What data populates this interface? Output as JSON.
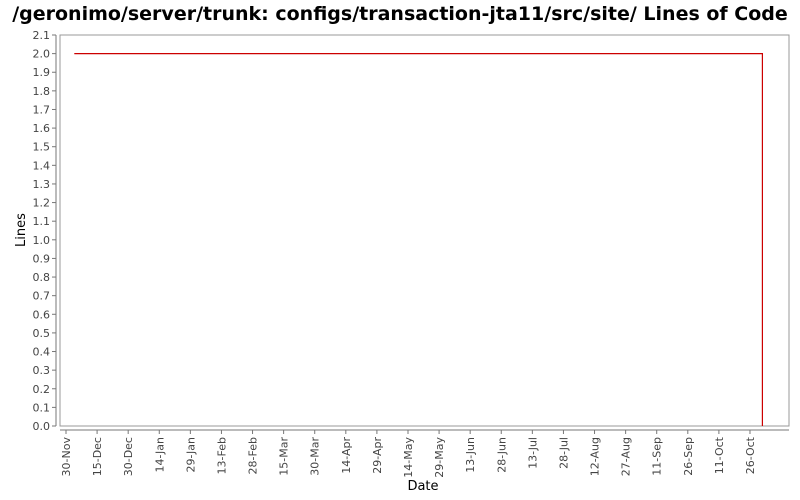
{
  "chart_data": {
    "type": "line",
    "title": "/geronimo/server/trunk: configs/transaction-jta11/src/site/ Lines of Code",
    "xlabel": "Date",
    "ylabel": "Lines",
    "ylim": [
      0.0,
      2.1
    ],
    "y_ticks": [
      "0.0",
      "0.1",
      "0.2",
      "0.3",
      "0.4",
      "0.5",
      "0.6",
      "0.7",
      "0.8",
      "0.9",
      "1.0",
      "1.1",
      "1.2",
      "1.3",
      "1.4",
      "1.5",
      "1.6",
      "1.7",
      "1.8",
      "1.9",
      "2.0",
      "2.1"
    ],
    "x_ticks": [
      "30-Nov",
      "15-Dec",
      "30-Dec",
      "14-Jan",
      "29-Jan",
      "13-Feb",
      "28-Feb",
      "15-Mar",
      "30-Mar",
      "14-Apr",
      "29-Apr",
      "14-May",
      "29-May",
      "13-Jun",
      "28-Jun",
      "13-Jul",
      "28-Jul",
      "12-Aug",
      "27-Aug",
      "11-Sep",
      "26-Sep",
      "11-Oct",
      "26-Oct"
    ],
    "grid": false,
    "legend": "none",
    "series": [
      {
        "color": "#cc0000",
        "points": [
          {
            "x": "04-Dec",
            "y": 2.0
          },
          {
            "x": "01-Nov",
            "y": 2.0
          },
          {
            "x": "01-Nov",
            "y": 0.0
          }
        ]
      }
    ]
  }
}
